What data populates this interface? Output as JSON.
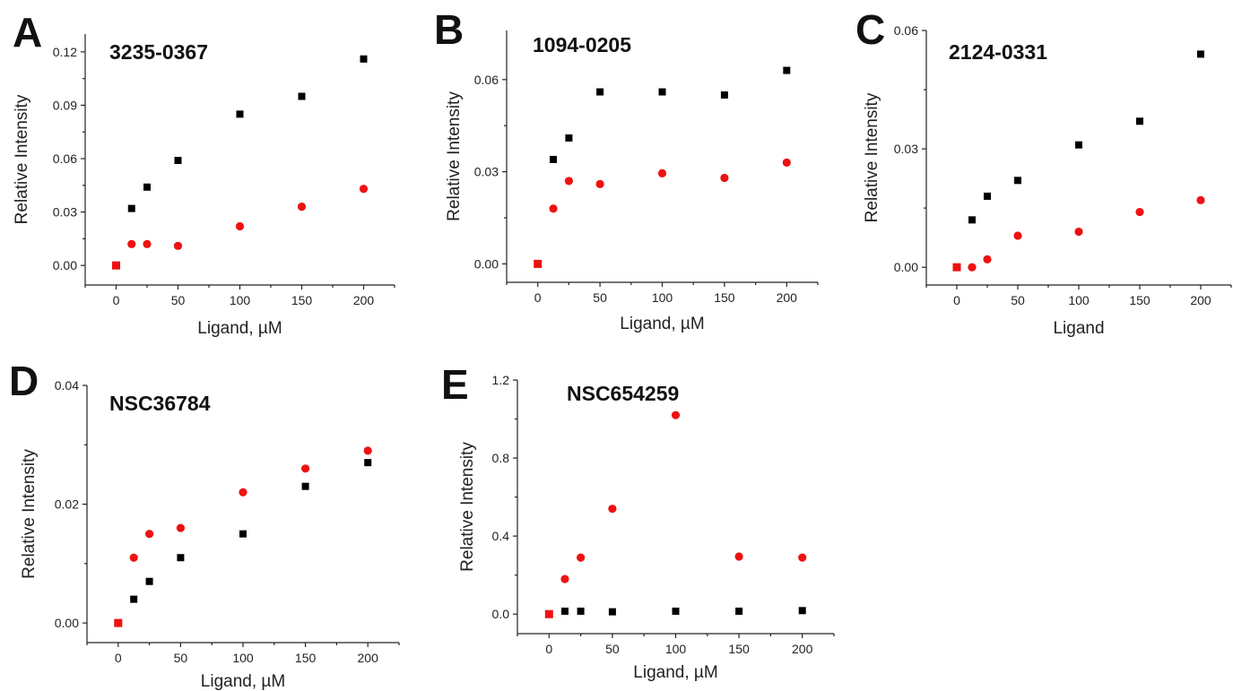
{
  "chart_data": [
    {
      "type": "scatter",
      "panel_label": "A",
      "title": "3235-0367",
      "xlabel": "Ligand, µM",
      "ylabel": "Relative Intensity",
      "xlim": [
        -25,
        225
      ],
      "ylim": [
        -0.011,
        0.13
      ],
      "xticks": [
        0,
        50,
        100,
        150,
        200
      ],
      "xtick_labels": [
        "0",
        "50",
        "100",
        "150",
        "200"
      ],
      "yticks": [
        0,
        0.03,
        0.06,
        0.09,
        0.12
      ],
      "ytick_labels": [
        "0.00",
        "0.03",
        "0.06",
        "0.09",
        "0.12"
      ],
      "series": [
        {
          "marker": "square",
          "color": "#000000",
          "x": [
            0,
            12.5,
            25,
            50,
            100,
            150,
            200
          ],
          "y": [
            0,
            0.032,
            0.044,
            0.059,
            0.085,
            0.095,
            0.116
          ]
        },
        {
          "marker": "circle",
          "color": "#ee1111",
          "x": [
            0,
            12.5,
            25,
            50,
            100,
            150,
            200
          ],
          "y": [
            0,
            0.012,
            0.012,
            0.011,
            0.022,
            0.033,
            0.043
          ]
        }
      ]
    },
    {
      "type": "scatter",
      "panel_label": "B",
      "title": "1094-0205",
      "xlabel": "Ligand, µM",
      "ylabel": "Relative Intensity",
      "xlim": [
        -25,
        225
      ],
      "ylim": [
        -0.006,
        0.076
      ],
      "xticks": [
        0,
        50,
        100,
        150,
        200
      ],
      "xtick_labels": [
        "0",
        "50",
        "100",
        "150",
        "200"
      ],
      "yticks": [
        0,
        0.03,
        0.06
      ],
      "ytick_labels": [
        "0.00",
        "0.03",
        "0.06"
      ],
      "series": [
        {
          "marker": "square",
          "color": "#000000",
          "x": [
            0,
            12.5,
            25,
            50,
            100,
            150,
            200
          ],
          "y": [
            0,
            0.034,
            0.041,
            0.056,
            0.056,
            0.055,
            0.063
          ]
        },
        {
          "marker": "circle",
          "color": "#ee1111",
          "x": [
            0,
            12.5,
            25,
            50,
            100,
            150,
            200
          ],
          "y": [
            0,
            0.018,
            0.027,
            0.026,
            0.0295,
            0.028,
            0.033
          ]
        }
      ]
    },
    {
      "type": "scatter",
      "panel_label": "C",
      "title": "2124-0331",
      "xlabel": "Ligand",
      "ylabel": "Relative Intensity",
      "xlim": [
        -25,
        225
      ],
      "ylim": [
        -0.0045,
        0.06
      ],
      "xticks": [
        0,
        50,
        100,
        150,
        200
      ],
      "xtick_labels": [
        "0",
        "50",
        "100",
        "150",
        "200"
      ],
      "yticks": [
        0,
        0.03,
        0.06
      ],
      "ytick_labels": [
        "0.00",
        "0.03",
        "0.06"
      ],
      "series": [
        {
          "marker": "square",
          "color": "#000000",
          "x": [
            0,
            12.5,
            25,
            50,
            100,
            150,
            200
          ],
          "y": [
            0,
            0.012,
            0.018,
            0.022,
            0.031,
            0.037,
            0.054
          ]
        },
        {
          "marker": "circle",
          "color": "#ee1111",
          "x": [
            0,
            12.5,
            25,
            50,
            100,
            150,
            200
          ],
          "y": [
            0,
            0,
            0.002,
            0.008,
            0.009,
            0.014,
            0.017
          ]
        }
      ]
    },
    {
      "type": "scatter",
      "panel_label": "D",
      "title": "NSC36784",
      "xlabel": "Ligand, µM",
      "ylabel": "Relative Intensity",
      "xlim": [
        -25,
        225
      ],
      "ylim": [
        -0.0033,
        0.04
      ],
      "xticks": [
        0,
        50,
        100,
        150,
        200
      ],
      "xtick_labels": [
        "0",
        "50",
        "100",
        "150",
        "200"
      ],
      "yticks": [
        0,
        0.02,
        0.04
      ],
      "ytick_labels": [
        "0.00",
        "0.02",
        "0.04"
      ],
      "series": [
        {
          "marker": "square",
          "color": "#000000",
          "x": [
            0,
            12.5,
            25,
            50,
            100,
            150,
            200
          ],
          "y": [
            0,
            0.004,
            0.007,
            0.011,
            0.015,
            0.023,
            0.027
          ]
        },
        {
          "marker": "circle",
          "color": "#ee1111",
          "x": [
            0,
            12.5,
            25,
            50,
            100,
            150,
            200
          ],
          "y": [
            0,
            0.011,
            0.015,
            0.016,
            0.022,
            0.026,
            0.029
          ]
        }
      ]
    },
    {
      "type": "scatter",
      "panel_label": "E",
      "title": "NSC654259",
      "xlabel": "Ligand, µM",
      "ylabel": "Relative Intensity",
      "xlim": [
        -25,
        225
      ],
      "ylim": [
        -0.1,
        1.2
      ],
      "xticks": [
        0,
        50,
        100,
        150,
        200
      ],
      "xtick_labels": [
        "0",
        "50",
        "100",
        "150",
        "200"
      ],
      "yticks": [
        0,
        0.4,
        0.8,
        1.2
      ],
      "ytick_labels": [
        "0.0",
        "0.4",
        "0.8",
        "1.2"
      ],
      "series": [
        {
          "marker": "square",
          "color": "#000000",
          "x": [
            0,
            12.5,
            25,
            50,
            100,
            150,
            200
          ],
          "y": [
            0,
            0.015,
            0.015,
            0.012,
            0.015,
            0.015,
            0.018
          ]
        },
        {
          "marker": "circle",
          "color": "#ee1111",
          "x": [
            0,
            12.5,
            25,
            50,
            100,
            150,
            200
          ],
          "y": [
            0,
            0.18,
            0.29,
            0.54,
            1.02,
            0.295,
            0.29
          ]
        }
      ]
    }
  ]
}
